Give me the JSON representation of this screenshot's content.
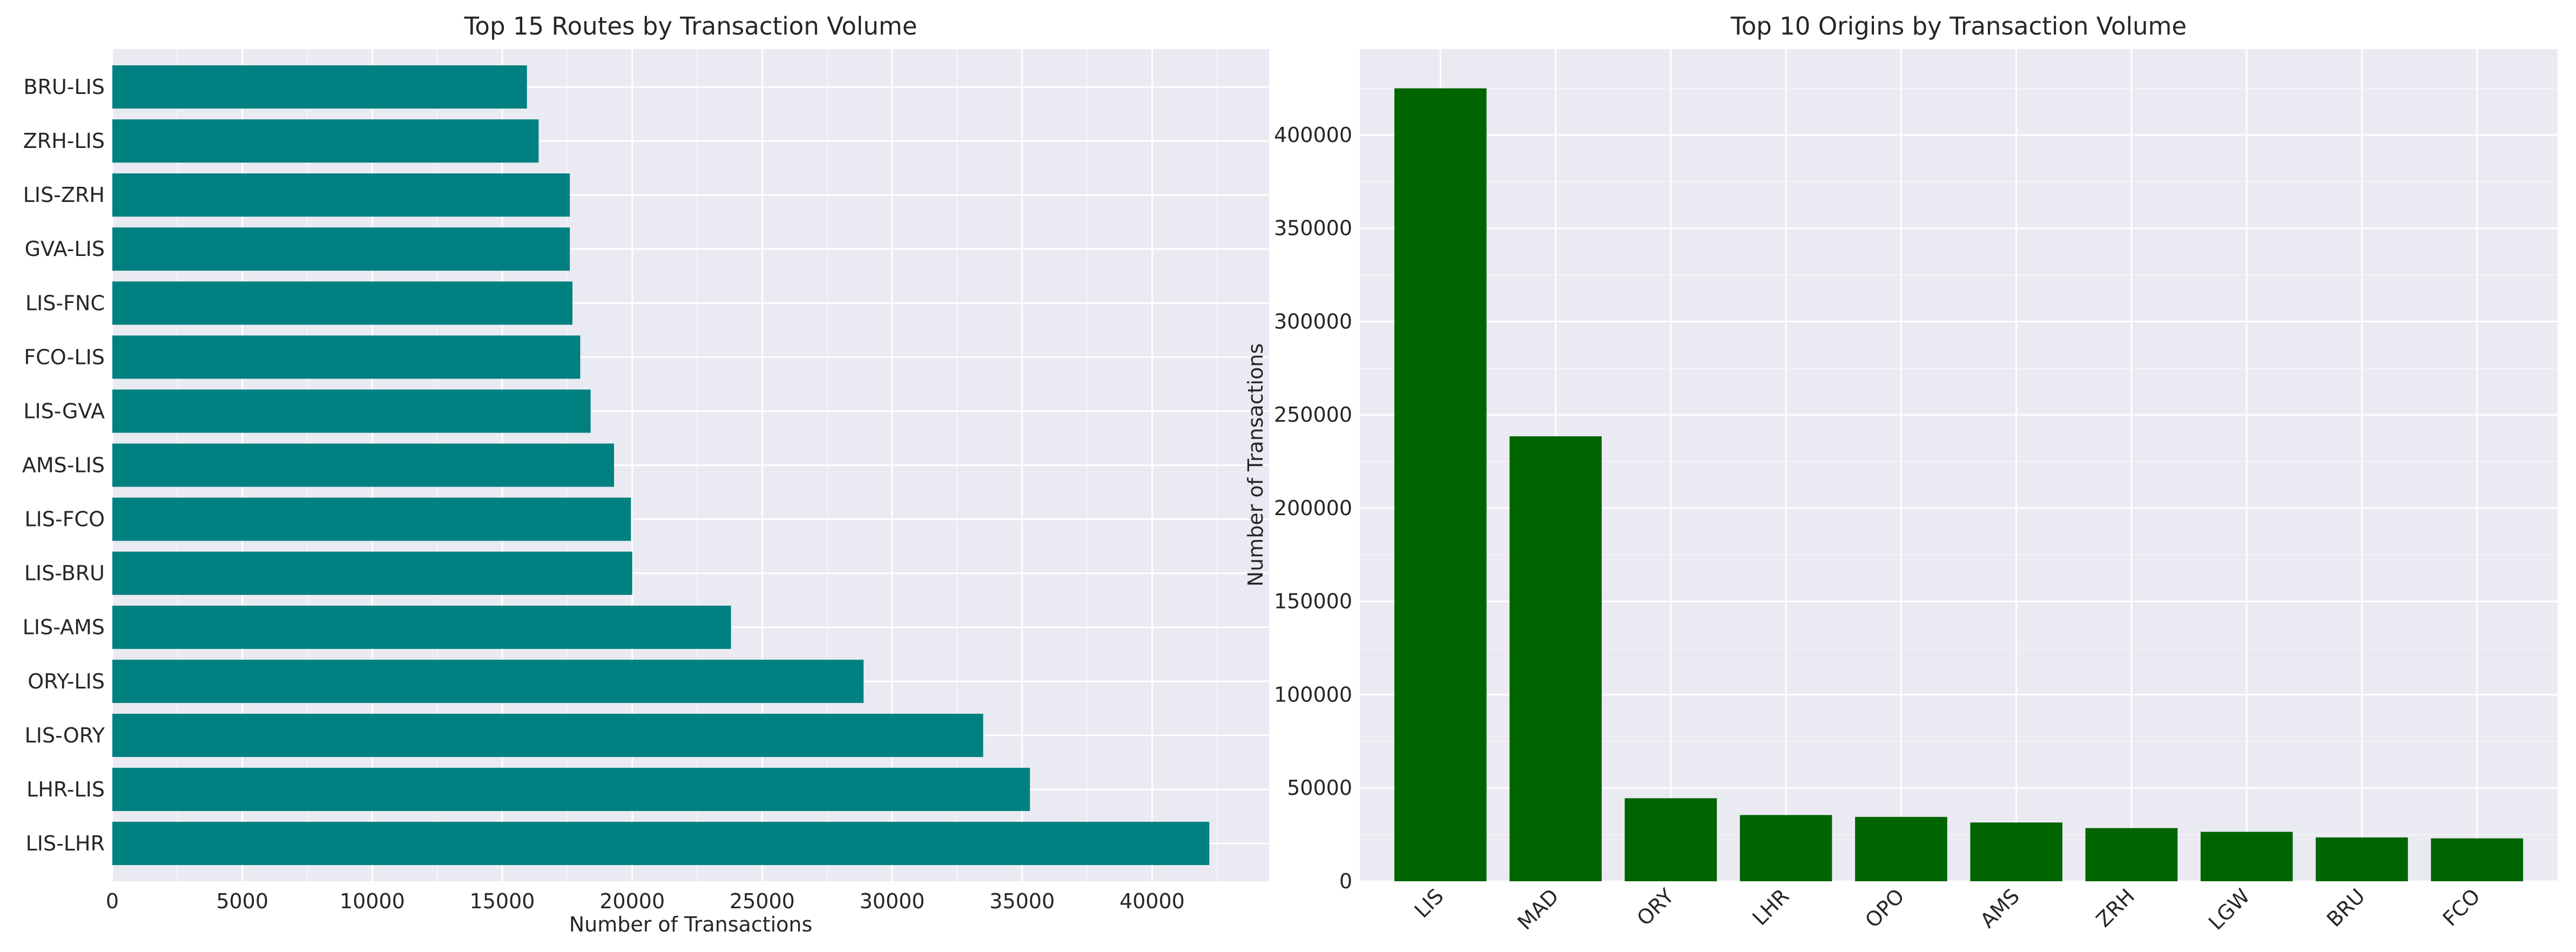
{
  "chart_data": [
    {
      "type": "bar",
      "orientation": "horizontal",
      "title": "Top 15 Routes by Transaction Volume",
      "xlabel": "Number of Transactions",
      "ylabel": "",
      "categories": [
        "LIS-LHR",
        "LHR-LIS",
        "LIS-ORY",
        "ORY-LIS",
        "LIS-AMS",
        "LIS-BRU",
        "LIS-FCO",
        "AMS-LIS",
        "LIS-GVA",
        "FCO-LIS",
        "LIS-FNC",
        "GVA-LIS",
        "LIS-ZRH",
        "ZRH-LIS",
        "BRU-LIS"
      ],
      "values": [
        42200,
        35300,
        33500,
        28900,
        23800,
        20000,
        19950,
        19300,
        18400,
        18000,
        17700,
        17600,
        17600,
        16400,
        15950
      ],
      "xlim": [
        0,
        44500
      ],
      "xticks": [
        0,
        5000,
        10000,
        15000,
        20000,
        25000,
        30000,
        35000,
        40000
      ],
      "color": "#008080",
      "grid": true
    },
    {
      "type": "bar",
      "orientation": "vertical",
      "title": "Top 10 Origins by Transaction Volume",
      "xlabel": "",
      "ylabel": "Number of Transactions",
      "categories": [
        "LIS",
        "MAD",
        "ORY",
        "LHR",
        "OPO",
        "AMS",
        "ZRH",
        "LGW",
        "BRU",
        "FCO"
      ],
      "values": [
        425000,
        238500,
        44500,
        35500,
        34500,
        31500,
        28500,
        26500,
        23500,
        23000
      ],
      "ylim": [
        0,
        446000
      ],
      "yticks": [
        0,
        50000,
        100000,
        150000,
        200000,
        250000,
        300000,
        350000,
        400000
      ],
      "color": "#006400",
      "grid": true
    }
  ]
}
